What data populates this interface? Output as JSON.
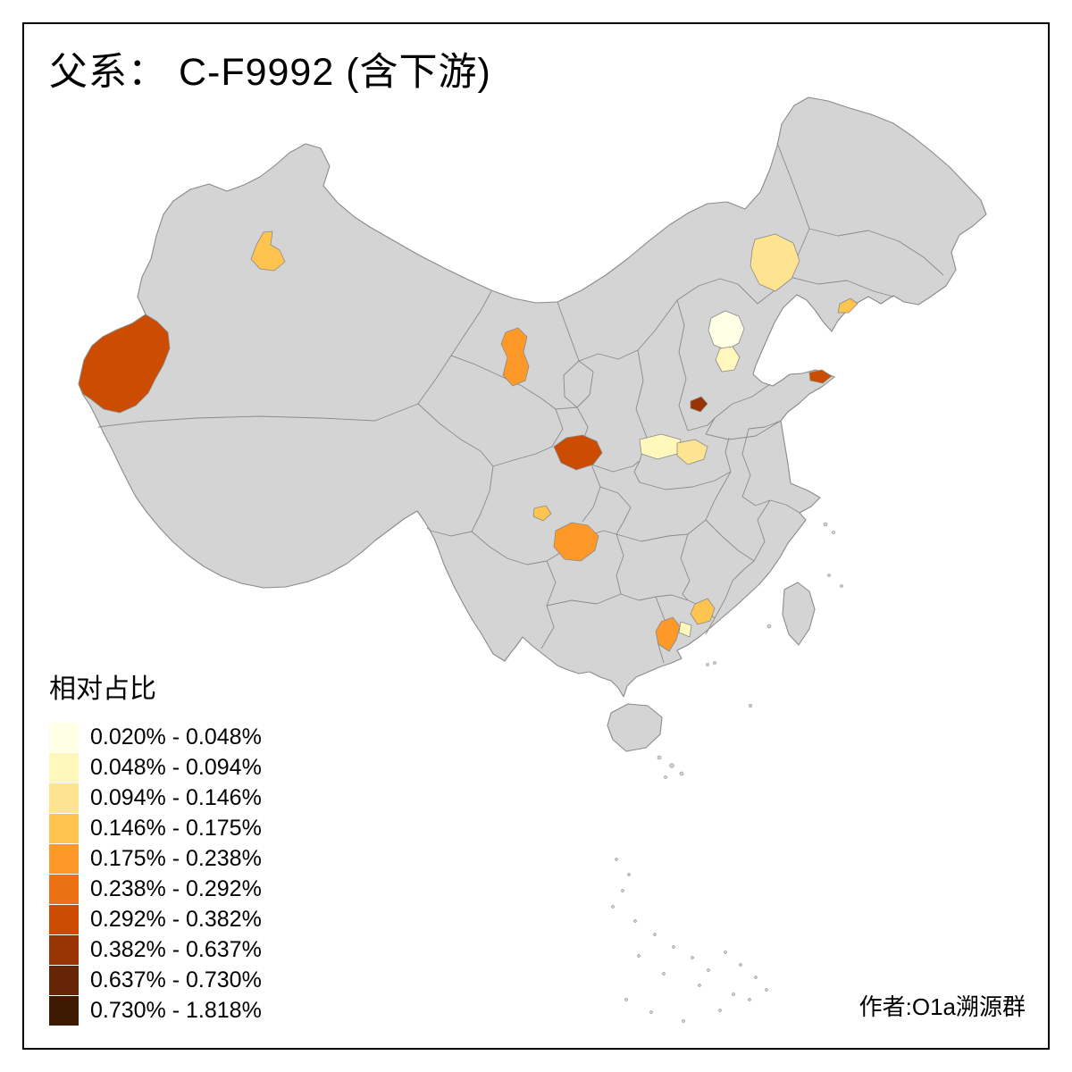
{
  "title": "父系： C-F9992 (含下游)",
  "attribution": "作者:O1a溯源群",
  "legend": {
    "title": "相对占比",
    "classes": [
      {
        "label": "0.020% - 0.048%",
        "color": "#FFFFE5"
      },
      {
        "label": "0.048% - 0.094%",
        "color": "#FFF7BC"
      },
      {
        "label": "0.094% - 0.146%",
        "color": "#FEE391"
      },
      {
        "label": "0.146% - 0.175%",
        "color": "#FEC44F"
      },
      {
        "label": "0.175% - 0.238%",
        "color": "#FE9929"
      },
      {
        "label": "0.238% - 0.292%",
        "color": "#EC7014"
      },
      {
        "label": "0.292% - 0.382%",
        "color": "#CC4C02"
      },
      {
        "label": "0.382% - 0.637%",
        "color": "#993404"
      },
      {
        "label": "0.637% - 0.730%",
        "color": "#662506"
      },
      {
        "label": "0.730% - 1.818%",
        "color": "#3F1A03"
      }
    ]
  },
  "map": {
    "land_color": "#d4d4d4",
    "border_color": "#8a8a8a",
    "regions": [
      {
        "id": "kashgar-prefecture",
        "class": 7
      },
      {
        "id": "north-xinjiang",
        "class": 4
      },
      {
        "id": "gansu-corridor",
        "class": 5
      },
      {
        "id": "liaoning-central",
        "class": 3
      },
      {
        "id": "beijing",
        "class": 1
      },
      {
        "id": "tianjin-langfang",
        "class": 2
      },
      {
        "id": "dandong-coast",
        "class": 4
      },
      {
        "id": "shandong-tip",
        "class": 7
      },
      {
        "id": "hebei-south-spot",
        "class": 8
      },
      {
        "id": "henan-west",
        "class": 2
      },
      {
        "id": "henan-central",
        "class": 3
      },
      {
        "id": "south-shaanxi",
        "class": 7
      },
      {
        "id": "sichuan-small",
        "class": 4
      },
      {
        "id": "guizhou-north",
        "class": 5
      },
      {
        "id": "guangdong-west",
        "class": 5
      },
      {
        "id": "guangdong-central-pale",
        "class": 2
      },
      {
        "id": "guangdong-north",
        "class": 4
      }
    ]
  }
}
